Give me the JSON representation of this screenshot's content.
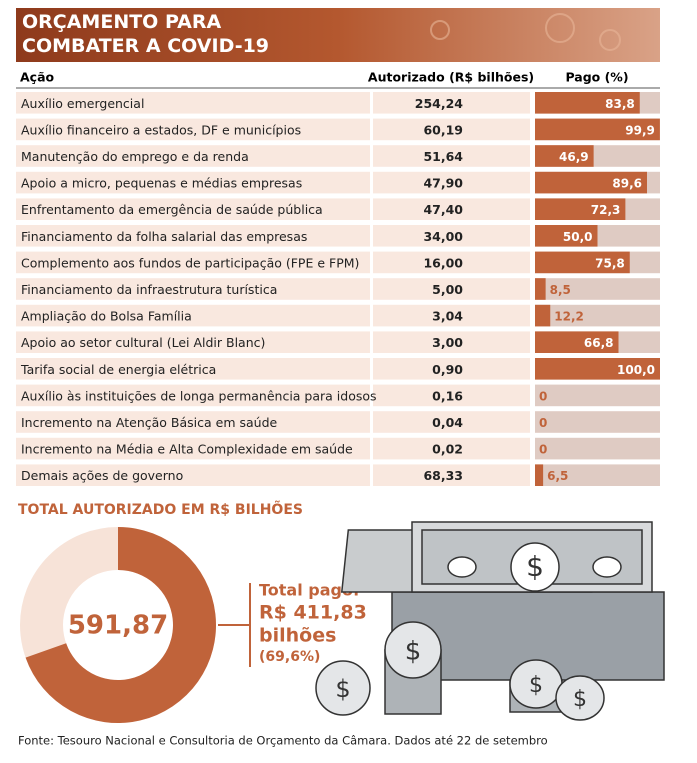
{
  "header": {
    "title": "ORÇAMENTO PARA COMBATER A COVID-19"
  },
  "table": {
    "columns": [
      "Ação",
      "Autorizado (R$ bilhões)",
      "Pago (%)"
    ],
    "authorized": [
      "254,24",
      "60,19",
      "51,64",
      "47,90",
      "47,40",
      "34,00",
      "16,00",
      "5,00",
      "3,04",
      "3,00",
      "0,90",
      "0,16",
      "0,04",
      "0,02",
      "68,33"
    ]
  },
  "chart_data": {
    "type": "bar",
    "categories": [
      "Auxílio emergencial",
      "Auxílio financeiro a estados, DF e municípios",
      "Manutenção do emprego e da renda",
      "Apoio a micro, pequenas e médias empresas",
      "Enfrentamento da emergência de saúde pública",
      "Financiamento da folha salarial das empresas",
      "Complemento aos fundos de participação (FPE e FPM)",
      "Financiamento da infraestrutura turística",
      "Ampliação do Bolsa Família",
      "Apoio ao setor cultural (Lei Aldir Blanc)",
      "Tarifa social de energia elétrica",
      "Auxílio às instituições de longa permanência para idosos",
      "Incremento na Atenção Básica em saúde",
      "Incremento na Média e Alta Complexidade em saúde",
      "Demais ações de governo"
    ],
    "values": [
      83.8,
      99.9,
      46.9,
      89.6,
      72.3,
      50.0,
      75.8,
      8.5,
      12.2,
      66.8,
      100.0,
      0,
      0,
      0,
      6.5
    ],
    "value_labels": [
      "83,8",
      "99,9",
      "46,9",
      "89,6",
      "72,3",
      "50,0",
      "75,8",
      "8,5",
      "12,2",
      "66,8",
      "100,0",
      "0",
      "0",
      "0",
      "6,5"
    ],
    "xlim": [
      0,
      100
    ],
    "color": "#c0633a",
    "track_color": "#dfcbc3"
  },
  "donut": {
    "title": "TOTAL AUTORIZADO EM R$ BILHÕES",
    "total_label": "591,87",
    "paid_caption": "Total pago:",
    "paid_amount": "R$ 411,83",
    "paid_unit": "bilhões",
    "share": {
      "value": 69.6,
      "label": "(69,6%)"
    }
  },
  "source": "Fonte: Tesouro Nacional e Consultoria de Orçamento da Câmara. Dados até 22 de setembro"
}
